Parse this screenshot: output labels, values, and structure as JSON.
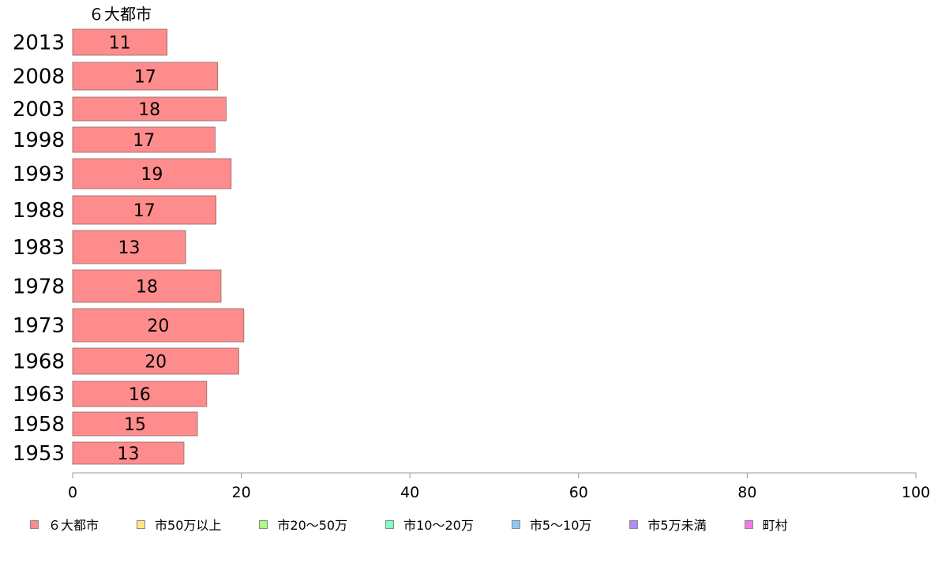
{
  "chart_data": {
    "type": "bar",
    "orientation": "horizontal",
    "categories": [
      "2013",
      "2008",
      "2003",
      "1998",
      "1993",
      "1988",
      "1983",
      "1978",
      "1973",
      "1968",
      "1963",
      "1958",
      "1953"
    ],
    "series": [
      {
        "name": "６大都市",
        "color": "#ff8c8c",
        "values": [
          11.2,
          17.2,
          18.2,
          16.9,
          18.8,
          17.0,
          13.4,
          17.6,
          20.3,
          19.7,
          15.9,
          14.8,
          13.2
        ],
        "value_labels": [
          "11",
          "17",
          "18",
          "17",
          "19",
          "17",
          "13",
          "18",
          "20",
          "20",
          "16",
          "15",
          "13"
        ]
      }
    ],
    "series_label_above": "６大都市",
    "xlim": [
      0,
      100
    ],
    "x_ticks": [
      "0",
      "20",
      "40",
      "60",
      "80",
      "100"
    ],
    "legend": {
      "placement": "bottom",
      "entries": [
        {
          "label": "６大都市",
          "color": "#ff8c8c"
        },
        {
          "label": "市50万以上",
          "color": "#ffe680"
        },
        {
          "label": "市20〜50万",
          "color": "#a6ff80"
        },
        {
          "label": "市10〜20万",
          "color": "#80ffc7"
        },
        {
          "label": "市5〜10万",
          "color": "#8cc8f5"
        },
        {
          "label": "市5万未満",
          "color": "#b08cf5"
        },
        {
          "label": "町村",
          "color": "#f57ae6"
        }
      ]
    },
    "grid": false
  }
}
